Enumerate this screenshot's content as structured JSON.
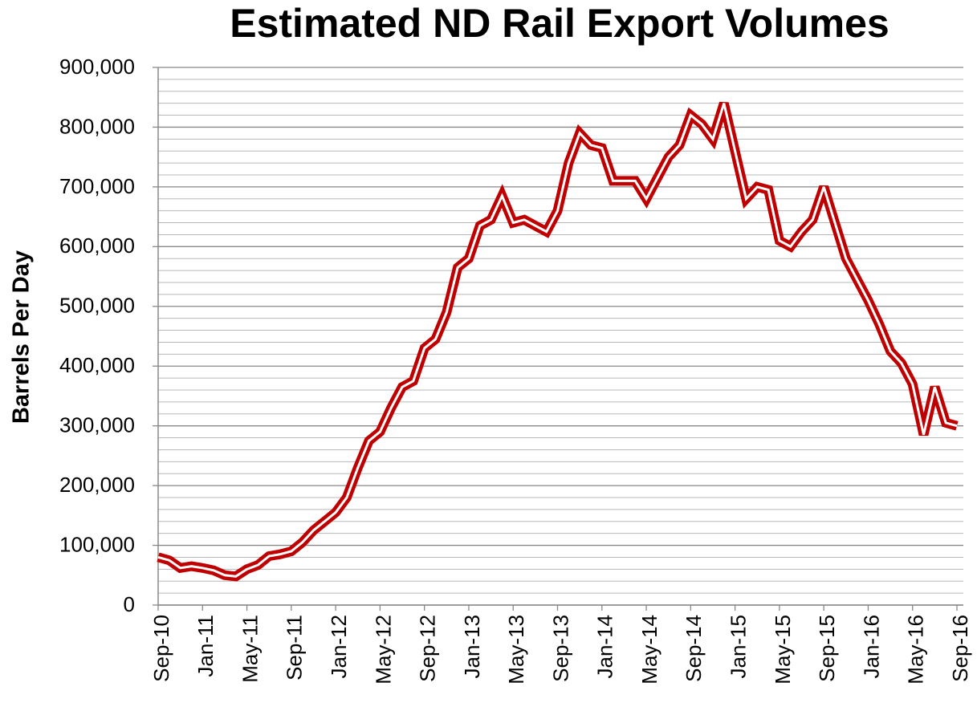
{
  "chart_data": {
    "type": "line",
    "title": "Estimated ND Rail Export Volumes",
    "y_label": "Barrels Per Day",
    "color": "#c00000",
    "grid": true,
    "minor_grid": true,
    "categories": [
      "Sep-10",
      null,
      null,
      null,
      "Jan-11",
      null,
      null,
      null,
      "May-11",
      null,
      null,
      null,
      "Sep-11",
      null,
      null,
      null,
      "Jan-12",
      null,
      null,
      null,
      "May-12",
      null,
      null,
      null,
      "Sep-12",
      null,
      null,
      null,
      "Jan-13",
      null,
      null,
      null,
      "May-13",
      null,
      null,
      null,
      "Sep-13",
      null,
      null,
      null,
      "Jan-14",
      null,
      null,
      null,
      "May-14",
      null,
      null,
      null,
      "Sep-14",
      null,
      null,
      null,
      "Jan-15",
      null,
      null,
      null,
      "May-15",
      null,
      null,
      null,
      "Sep-15",
      null,
      null,
      null,
      "Jan-16",
      null,
      null,
      null,
      "May-16",
      null,
      null,
      null,
      "Sep-16"
    ],
    "values": [
      80000,
      75000,
      62000,
      65000,
      62000,
      58000,
      50000,
      48000,
      60000,
      67000,
      82000,
      85000,
      90000,
      105000,
      125000,
      140000,
      155000,
      180000,
      230000,
      275000,
      290000,
      330000,
      365000,
      375000,
      430000,
      445000,
      490000,
      565000,
      580000,
      635000,
      645000,
      685000,
      640000,
      645000,
      635000,
      625000,
      660000,
      740000,
      790000,
      770000,
      765000,
      710000,
      710000,
      710000,
      680000,
      715000,
      750000,
      770000,
      820000,
      805000,
      780000,
      840000,
      760000,
      680000,
      700000,
      695000,
      610000,
      600000,
      625000,
      645000,
      700000,
      640000,
      580000,
      545000,
      510000,
      470000,
      425000,
      405000,
      370000,
      285000,
      365000,
      305000,
      300000
    ],
    "ylim": [
      0,
      900000
    ],
    "yticks": [
      0,
      {
        "value": 100000,
        "label": "100,000"
      },
      {
        "value": 200000,
        "label": "200,000"
      },
      {
        "value": 300000,
        "label": "300,000"
      },
      {
        "value": 400000,
        "label": "400,000"
      },
      {
        "value": 500000,
        "label": "500,000"
      },
      {
        "value": 600000,
        "label": "600,000"
      },
      {
        "value": 700000,
        "label": "700,000"
      },
      {
        "value": 800000,
        "label": "800,000"
      },
      {
        "value": 900000,
        "label": "900,000"
      }
    ]
  }
}
